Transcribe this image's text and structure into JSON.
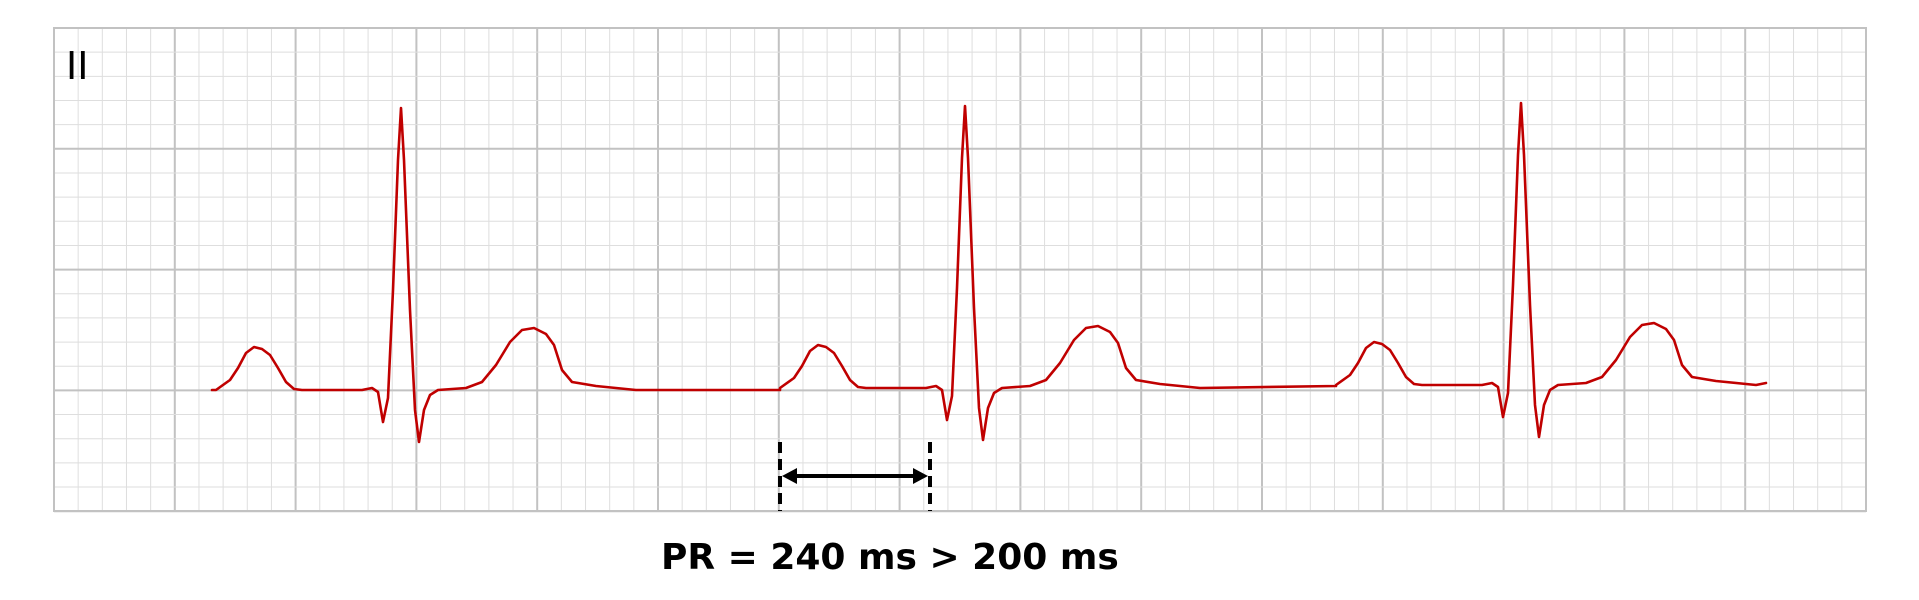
{
  "strip": {
    "lead": "II",
    "trace_color": "#c00000",
    "grid_major_color": "#c2c2c2",
    "grid_minor_color": "#dedede"
  },
  "measurement": {
    "label": "PR = 240 ms > 200 ms",
    "pr_interval_ms": 240,
    "threshold_ms": 200
  }
}
